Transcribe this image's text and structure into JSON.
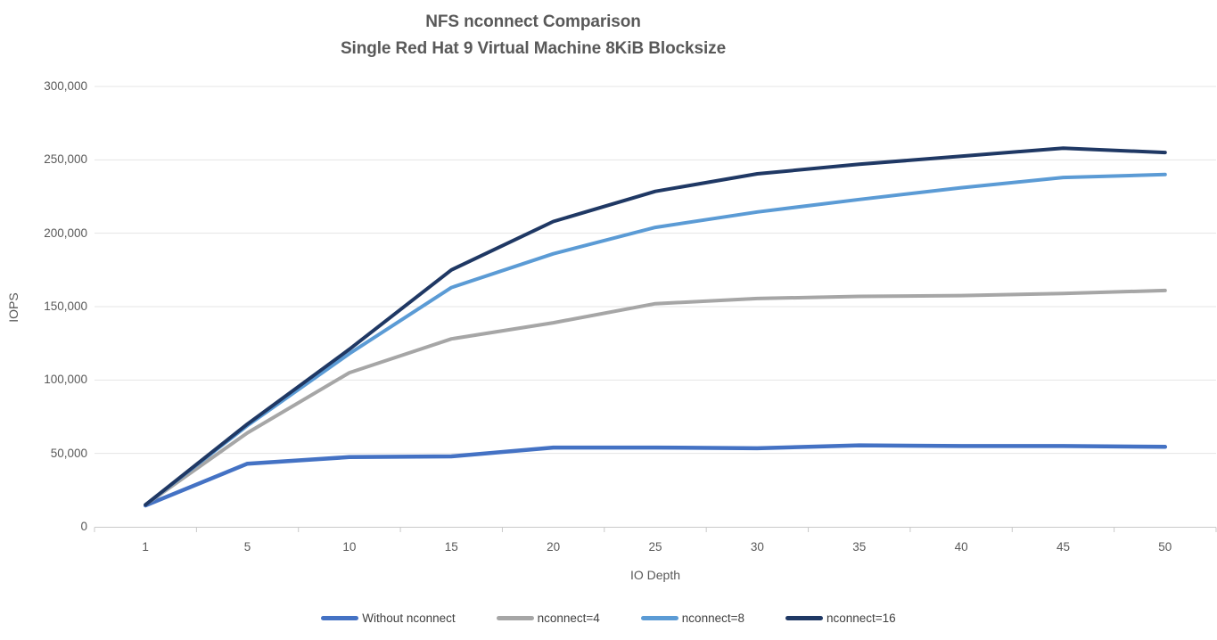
{
  "title": {
    "line1": "NFS nconnect Comparison",
    "line2": "Single Red Hat 9 Virtual Machine 8KiB Blocksize"
  },
  "chart_data": {
    "type": "line",
    "title": "NFS nconnect Comparison — Single Red Hat 9 Virtual Machine 8KiB Blocksize",
    "xlabel": "IO Depth",
    "ylabel": "IOPS",
    "categories": [
      1,
      5,
      10,
      15,
      20,
      25,
      30,
      35,
      40,
      45,
      50
    ],
    "x_tick_labels": [
      "1",
      "5",
      "10",
      "15",
      "20",
      "25",
      "30",
      "35",
      "40",
      "45",
      "50"
    ],
    "ylim": [
      0,
      300000
    ],
    "y_tick_step": 50000,
    "y_tick_labels": [
      "0",
      "50,000",
      "100,000",
      "150,000",
      "200,000",
      "250,000",
      "300,000"
    ],
    "grid": true,
    "legend_position": "bottom",
    "series": [
      {
        "name": "Without nconnect",
        "color": "#4472C4",
        "values": [
          14500,
          43000,
          47500,
          48000,
          54000,
          54000,
          53500,
          55500,
          55000,
          55000,
          54500
        ]
      },
      {
        "name": "nconnect=4",
        "color": "#A6A6A6",
        "values": [
          15000,
          64000,
          105000,
          128000,
          139000,
          152000,
          155500,
          157000,
          157500,
          159000,
          161000
        ]
      },
      {
        "name": "nconnect=8",
        "color": "#5B9BD5",
        "values": [
          15000,
          69000,
          118000,
          163000,
          186000,
          204000,
          214500,
          223000,
          231000,
          238000,
          240000
        ]
      },
      {
        "name": "nconnect=16",
        "color": "#1F3864",
        "values": [
          15000,
          70000,
          121000,
          175000,
          208000,
          228500,
          240500,
          247000,
          252500,
          258000,
          255000
        ]
      }
    ]
  },
  "colors": {
    "background": "#FFFFFF",
    "grid_line": "#E4E4E4",
    "axis_line": "#C9C9C9",
    "title_text": "#595959",
    "tick_text": "#595959",
    "legend_text": "#404040"
  }
}
